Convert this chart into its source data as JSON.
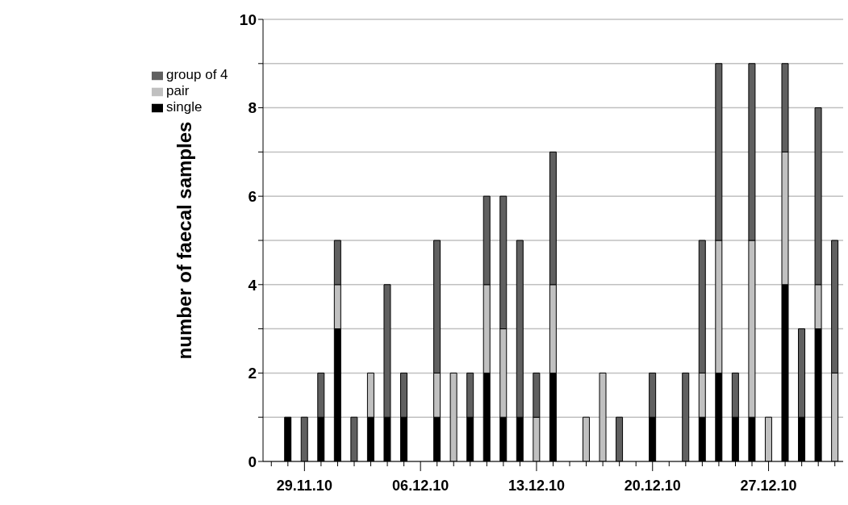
{
  "chart_data": {
    "type": "bar",
    "stacked": true,
    "ylabel": "number of faecal samples",
    "categories": [
      null,
      null,
      "29.11.10",
      null,
      null,
      null,
      null,
      null,
      null,
      "06.12.10",
      null,
      null,
      null,
      null,
      null,
      null,
      "13.12.10",
      null,
      null,
      null,
      null,
      null,
      null,
      "20.12.10",
      null,
      null,
      null,
      null,
      null,
      null,
      "27.12.10",
      null,
      null,
      null,
      null
    ],
    "series": [
      {
        "name": "single",
        "color": "#000000",
        "values": [
          0,
          1,
          0,
          1,
          3,
          0,
          1,
          1,
          1,
          0,
          1,
          0,
          1,
          2,
          1,
          1,
          0,
          2,
          0,
          0,
          0,
          0,
          0,
          1,
          0,
          0,
          1,
          2,
          1,
          1,
          0,
          4,
          1,
          3,
          0
        ]
      },
      {
        "name": "pair",
        "color": "#c0c0c0",
        "values": [
          0,
          0,
          0,
          0,
          1,
          0,
          1,
          0,
          0,
          0,
          1,
          2,
          0,
          2,
          2,
          0,
          1,
          2,
          0,
          1,
          2,
          0,
          0,
          0,
          0,
          0,
          1,
          3,
          0,
          4,
          1,
          3,
          0,
          1,
          2
        ]
      },
      {
        "name": "group of 4",
        "color": "#606060",
        "values": [
          0,
          0,
          1,
          1,
          1,
          1,
          0,
          3,
          1,
          0,
          3,
          0,
          1,
          2,
          3,
          4,
          1,
          3,
          0,
          0,
          0,
          1,
          0,
          1,
          0,
          2,
          3,
          4,
          1,
          4,
          0,
          2,
          2,
          4,
          3
        ]
      }
    ],
    "ylim": [
      0,
      10
    ],
    "yticks": [
      0,
      {
        "value": 1,
        "label": null
      },
      2,
      {
        "value": 3,
        "label": null
      },
      4,
      {
        "value": 5,
        "label": null
      },
      6,
      {
        "value": 7,
        "label": null
      },
      8,
      {
        "value": 9,
        "label": null
      },
      10
    ],
    "grid": "y",
    "legend": "top left"
  }
}
